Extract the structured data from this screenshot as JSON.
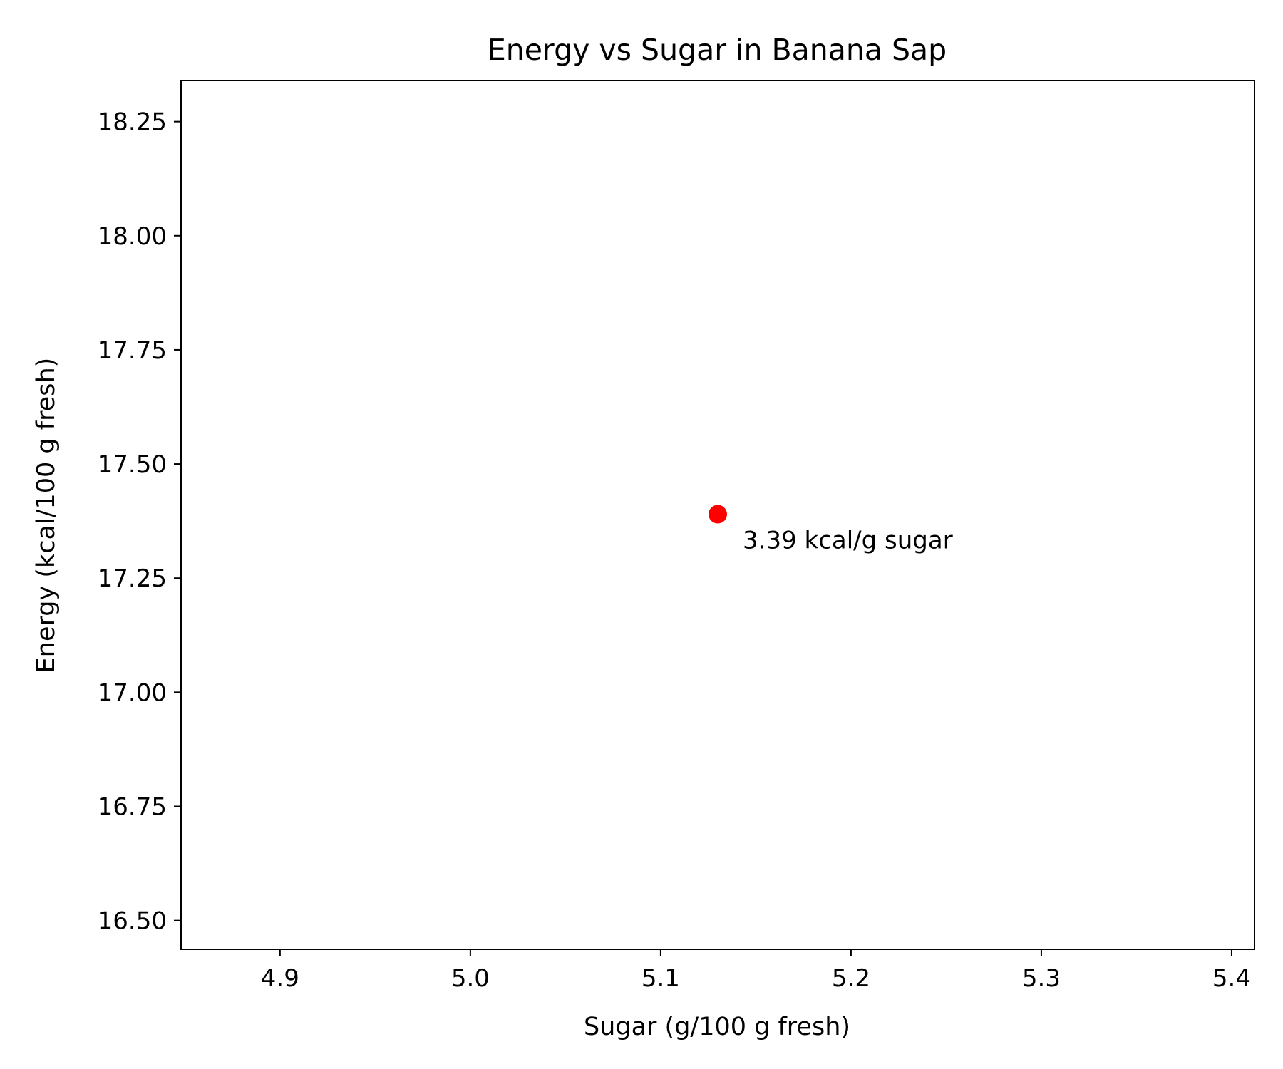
{
  "chart_data": {
    "type": "scatter",
    "title": "Energy vs Sugar in Banana Sap",
    "xlabel": "Sugar (g/100 g fresh)",
    "ylabel": "Energy (kcal/100 g fresh)",
    "xlim": [
      4.848,
      5.412
    ],
    "ylim": [
      16.437,
      18.34
    ],
    "xticks": [
      {
        "value": 4.9,
        "label": "4.9"
      },
      {
        "value": 5.0,
        "label": "5.0"
      },
      {
        "value": 5.1,
        "label": "5.1"
      },
      {
        "value": 5.2,
        "label": "5.2"
      },
      {
        "value": 5.3,
        "label": "5.3"
      },
      {
        "value": 5.4,
        "label": "5.4"
      }
    ],
    "yticks": [
      {
        "value": 16.5,
        "label": "16.50"
      },
      {
        "value": 16.75,
        "label": "16.75"
      },
      {
        "value": 17.0,
        "label": "17.00"
      },
      {
        "value": 17.25,
        "label": "17.25"
      },
      {
        "value": 17.5,
        "label": "17.50"
      },
      {
        "value": 17.75,
        "label": "17.75"
      },
      {
        "value": 18.0,
        "label": "18.00"
      },
      {
        "value": 18.25,
        "label": "18.25"
      }
    ],
    "points": [
      {
        "x": 5.13,
        "y": 17.39,
        "color": "#ff0000",
        "annotation": "3.39 kcal/g sugar"
      }
    ],
    "grid": false,
    "legend": "none"
  }
}
